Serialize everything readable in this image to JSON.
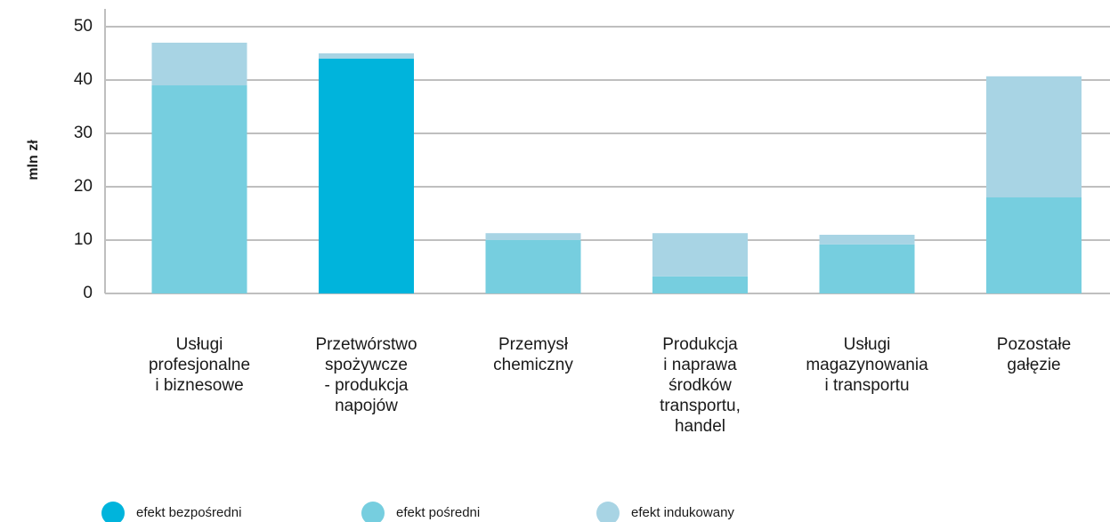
{
  "chart_data": {
    "type": "stacked_bar",
    "ylabel": "mln zł",
    "categories": [
      [
        "Usługi",
        "profesjonalne",
        "i biznesowe"
      ],
      [
        "Przetwórstwo",
        "spożywcze",
        "- produkcja",
        "napojów"
      ],
      [
        "Przemysł",
        "chemiczny"
      ],
      [
        "Produkcja",
        "i naprawa",
        "środków",
        "transportu,",
        "handel"
      ],
      [
        "Usługi",
        "magazynowania",
        "i transportu"
      ],
      [
        "Pozostałe",
        "gałęzie"
      ]
    ],
    "series": [
      {
        "name": "efekt bezpośredni",
        "color": "#00b4dc",
        "values": [
          0,
          44,
          0,
          0,
          0,
          0
        ]
      },
      {
        "name": "efekt pośredni",
        "color": "#76cedf",
        "values": [
          39,
          0,
          10,
          3.2,
          9.2,
          18
        ]
      },
      {
        "name": "efekt indukowany",
        "color": "#a8d4e4",
        "values": [
          8,
          1,
          1.3,
          8.1,
          1.8,
          22.7
        ]
      }
    ],
    "ylim": [
      0,
      50
    ],
    "yticks": [
      0,
      10,
      20,
      30,
      40,
      50
    ],
    "grid": true
  }
}
